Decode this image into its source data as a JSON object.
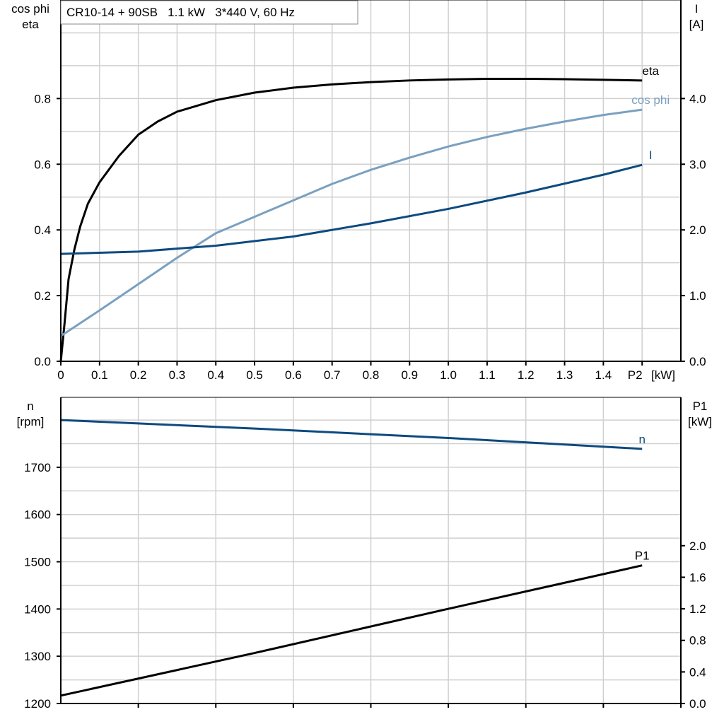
{
  "chart_data": [
    {
      "type": "line",
      "title": "CR10-14 + 90SB   1.1 kW   3*440 V, 60 Hz",
      "ylabel_left": [
        "cos phi",
        "eta"
      ],
      "ylabel_right": [
        "I",
        "[A]"
      ],
      "xlabel": "[kW]",
      "xlim": [
        0,
        1.6
      ],
      "ylim_left": [
        0,
        1.1
      ],
      "ylim_right": [
        0,
        5.5
      ],
      "x_ticks": [
        "0",
        "0.1",
        "0.2",
        "0.3",
        "0.4",
        "0.5",
        "0.6",
        "0.7",
        "0.8",
        "0.9",
        "1.0",
        "1.1",
        "1.2",
        "1.3",
        "1.4",
        "P2"
      ],
      "y_ticks_left": [
        "0.0",
        "0.2",
        "0.4",
        "0.6",
        "0.8"
      ],
      "y_ticks_right": [
        "0.0",
        "1.0",
        "2.0",
        "3.0",
        "4.0"
      ],
      "grid": true,
      "series": [
        {
          "name": "eta",
          "axis": "left",
          "color": "#000000",
          "points": [
            [
              0,
              0
            ],
            [
              0.01,
              0.12
            ],
            [
              0.02,
              0.25
            ],
            [
              0.035,
              0.34
            ],
            [
              0.05,
              0.41
            ],
            [
              0.07,
              0.48
            ],
            [
              0.1,
              0.545
            ],
            [
              0.15,
              0.625
            ],
            [
              0.2,
              0.69
            ],
            [
              0.25,
              0.73
            ],
            [
              0.3,
              0.76
            ],
            [
              0.4,
              0.795
            ],
            [
              0.5,
              0.818
            ],
            [
              0.6,
              0.833
            ],
            [
              0.7,
              0.843
            ],
            [
              0.8,
              0.85
            ],
            [
              0.9,
              0.855
            ],
            [
              1.0,
              0.858
            ],
            [
              1.1,
              0.86
            ],
            [
              1.2,
              0.86
            ],
            [
              1.3,
              0.859
            ],
            [
              1.4,
              0.857
            ],
            [
              1.5,
              0.855
            ]
          ]
        },
        {
          "name": "cos phi",
          "axis": "left",
          "color": "#7aa0c0",
          "points": [
            [
              0,
              0.077
            ],
            [
              0.1,
              0.155
            ],
            [
              0.2,
              0.235
            ],
            [
              0.3,
              0.315
            ],
            [
              0.4,
              0.39
            ],
            [
              0.5,
              0.44
            ],
            [
              0.6,
              0.49
            ],
            [
              0.7,
              0.54
            ],
            [
              0.8,
              0.583
            ],
            [
              0.9,
              0.62
            ],
            [
              1.0,
              0.654
            ],
            [
              1.1,
              0.683
            ],
            [
              1.2,
              0.708
            ],
            [
              1.3,
              0.73
            ],
            [
              1.4,
              0.75
            ],
            [
              1.5,
              0.766
            ]
          ]
        },
        {
          "name": "I",
          "axis": "right",
          "color": "#0d4a80",
          "points": [
            [
              0,
              1.635
            ],
            [
              0.2,
              1.67
            ],
            [
              0.4,
              1.76
            ],
            [
              0.6,
              1.9
            ],
            [
              0.8,
              2.1
            ],
            [
              1.0,
              2.32
            ],
            [
              1.2,
              2.57
            ],
            [
              1.4,
              2.84
            ],
            [
              1.5,
              2.99
            ]
          ]
        }
      ]
    },
    {
      "type": "line",
      "ylabel_left": [
        "n",
        "[rpm]"
      ],
      "ylabel_right": [
        "P1",
        "[kW]"
      ],
      "xlim": [
        0,
        1.6
      ],
      "ylim_left": [
        1200,
        1848
      ],
      "ylim_right": [
        0,
        3.88
      ],
      "y_ticks_left": [
        "1200",
        "1300",
        "1400",
        "1500",
        "1600",
        "1700"
      ],
      "y_ticks_right": [
        "0.0",
        "0.4",
        "0.8",
        "1.2",
        "1.6",
        "2.0"
      ],
      "grid": true,
      "series": [
        {
          "name": "n",
          "axis": "left",
          "color": "#0d4a80",
          "points": [
            [
              0,
              1800
            ],
            [
              0.5,
              1782
            ],
            [
              1.0,
              1762
            ],
            [
              1.5,
              1739
            ]
          ]
        },
        {
          "name": "P1",
          "axis": "right",
          "color": "#000000",
          "points": [
            [
              0,
              0.1
            ],
            [
              0.5,
              0.64
            ],
            [
              1.0,
              1.2
            ],
            [
              1.5,
              1.75
            ]
          ]
        }
      ]
    }
  ]
}
